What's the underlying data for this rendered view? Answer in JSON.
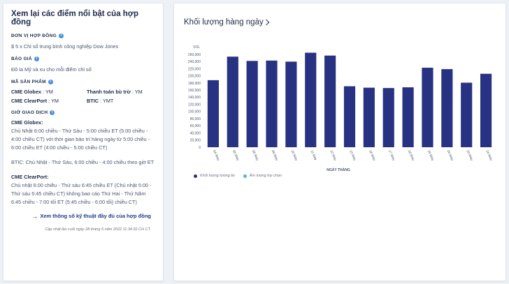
{
  "left": {
    "title": "Xem lại các điểm nổi bật của hợp đồng",
    "unit": {
      "label": "ĐƠN VỊ HỢP ĐỒNG",
      "text": "$ 5 x Chỉ số trung bình công nghiệp Dow Jones"
    },
    "quote": {
      "label": "BÁO GIÁ",
      "text": "Đô la Mỹ và xu cho mỗi điểm chỉ số"
    },
    "codes": {
      "label": "MÃ SẢN PHẨM",
      "items": [
        {
          "name": "CME Globex",
          "value": "YM"
        },
        {
          "name": "Thanh toán bù trừ",
          "value": "YM"
        },
        {
          "name": "CME ClearPort",
          "value": "YM"
        },
        {
          "name": "BTIC",
          "value": "YMT"
        }
      ]
    },
    "hours": {
      "label": "GIỜ GIAO DỊCH",
      "globex_title": "CME Globex:",
      "globex_text": "Chủ Nhật 6:00 chiều - Thứ Sáu - 5:00 chiều ET (5:00 chiều - 4:00 chiều CT) với thời gian bảo trì hàng ngày từ 5:00 chiều - 6:00 chiều ET (4:00 chiều - 5:00 chiều CT)",
      "btic_text": "BTIC: Chủ Nhật - Thứ Sáu, 6:00 chiều - 4:00 chiều theo giờ ET",
      "clearport_title": "CME ClearPort:",
      "clearport_text": "Chủ nhật 6:00 chiều - Thứ sáu 6:45 chiều ET (Chủ nhật 5:00 - Thứ sáu 5:45 chiều CT) không bao cáo Thứ Hai - Thứ Năm 6:45 chiều - 7:00 tối ET (5:45 chiều - 6:00 tối) chiều CT)"
    },
    "spec_link": "Xem thông số kỹ thuật đầy đủ của hợp đồng",
    "updated": "Cập nhật lần cuối ngày 28 tháng 5 năm 2022 11:34:32 CH CT."
  },
  "chart_title": "Khối lượng hàng ngày",
  "legend": {
    "volume": "Khối lượng tương lai",
    "options": "Âm lượng tùy chọn"
  },
  "colors": {
    "bar": "#283283",
    "options": "#4fb3e8",
    "link": "#1e3a8a",
    "info": "#4a90d9"
  },
  "chart_data": {
    "type": "bar",
    "ylabel": "VOL",
    "xlabel": "NGÀY THÁNG",
    "ylim": [
      0,
      270000
    ],
    "ytick_step": 20000,
    "categories": [
      "04 May",
      "05 May",
      "06 May",
      "09 May",
      "10 May",
      "11 May",
      "12 May",
      "13 May",
      "16 May",
      "17 May",
      "18 May",
      "19 May",
      "20 May",
      "23 May",
      "24 May"
    ],
    "series": [
      {
        "name": "Khối lượng tương lai",
        "values": [
          188000,
          254000,
          242000,
          243000,
          240000,
          265000,
          257000,
          171000,
          167000,
          166000,
          168000,
          223000,
          219000,
          181000,
          206000
        ]
      }
    ],
    "grid": false,
    "legend_position": "bottom-left"
  }
}
